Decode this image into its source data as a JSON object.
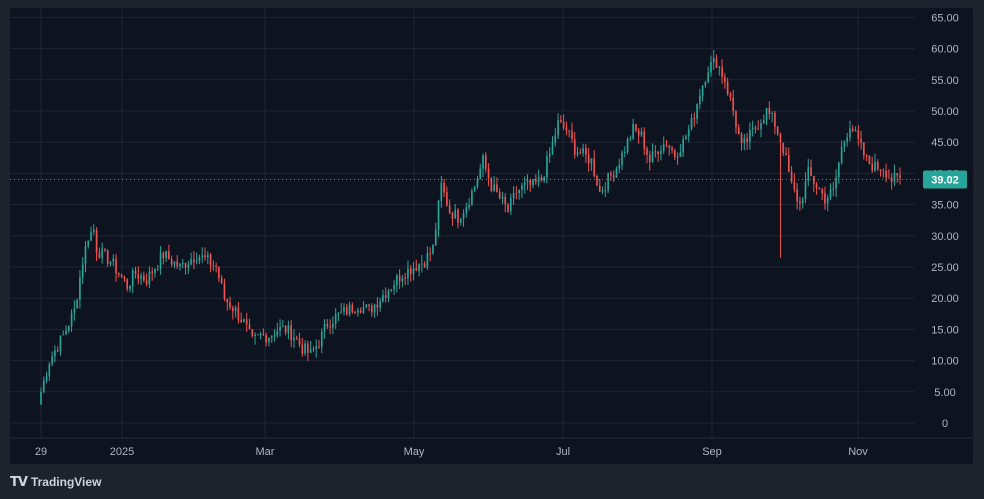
{
  "brand": {
    "logo_mark": "TV",
    "name": "TradingView"
  },
  "colors": {
    "background": "#1e222d",
    "panel": "#0e1320",
    "grid": "#1e2433",
    "up": "#26a69a",
    "down": "#ef5350",
    "text": "#b2b5be",
    "price_line": "#26a69a",
    "price_label_bg": "#26a69a"
  },
  "chart_data": {
    "type": "candlestick",
    "y_ticks": [
      "65.00",
      "60.00",
      "55.00",
      "50.00",
      "45.00",
      "40.00",
      "35.00",
      "30.00",
      "25.00",
      "20.00",
      "15.00",
      "10.00",
      "5.00",
      "0"
    ],
    "ylim": [
      0,
      65
    ],
    "x_ticks": [
      "29",
      "2025",
      "Mar",
      "May",
      "Jul",
      "Sep",
      "Nov"
    ],
    "last_price": 39.02,
    "last_price_label": "39.02",
    "grid": true,
    "price_path_keypoints": [
      [
        0,
        5
      ],
      [
        3,
        10
      ],
      [
        8,
        14
      ],
      [
        12,
        18
      ],
      [
        15,
        26
      ],
      [
        17,
        30
      ],
      [
        19,
        31
      ],
      [
        20,
        28
      ],
      [
        22,
        27
      ],
      [
        25,
        26
      ],
      [
        28,
        24
      ],
      [
        31,
        22
      ],
      [
        34,
        24
      ],
      [
        38,
        23
      ],
      [
        41,
        25
      ],
      [
        44,
        27
      ],
      [
        47,
        26
      ],
      [
        50,
        25
      ],
      [
        53,
        26
      ],
      [
        56,
        27
      ],
      [
        60,
        26
      ],
      [
        63,
        25
      ],
      [
        66,
        20
      ],
      [
        70,
        18
      ],
      [
        73,
        16
      ],
      [
        76,
        13
      ],
      [
        79,
        14
      ],
      [
        82,
        14
      ],
      [
        85,
        15
      ],
      [
        88,
        15
      ],
      [
        91,
        14
      ],
      [
        94,
        12
      ],
      [
        97,
        11
      ],
      [
        100,
        13
      ],
      [
        103,
        16
      ],
      [
        106,
        17
      ],
      [
        110,
        18
      ],
      [
        114,
        19
      ],
      [
        118,
        18
      ],
      [
        122,
        20
      ],
      [
        126,
        22
      ],
      [
        130,
        24
      ],
      [
        134,
        25
      ],
      [
        138,
        26
      ],
      [
        141,
        28
      ],
      [
        144,
        38
      ],
      [
        147,
        34
      ],
      [
        150,
        33
      ],
      [
        153,
        35
      ],
      [
        156,
        38
      ],
      [
        159,
        42
      ],
      [
        162,
        38
      ],
      [
        165,
        36
      ],
      [
        168,
        34
      ],
      [
        171,
        37
      ],
      [
        174,
        38
      ],
      [
        177,
        38
      ],
      [
        180,
        39
      ],
      [
        183,
        43
      ],
      [
        186,
        48
      ],
      [
        189,
        47
      ],
      [
        192,
        44
      ],
      [
        195,
        43
      ],
      [
        198,
        42
      ],
      [
        201,
        37
      ],
      [
        204,
        39
      ],
      [
        207,
        41
      ],
      [
        210,
        44
      ],
      [
        213,
        47
      ],
      [
        216,
        46
      ],
      [
        219,
        42
      ],
      [
        222,
        44
      ],
      [
        225,
        45
      ],
      [
        228,
        43
      ],
      [
        231,
        45
      ],
      [
        234,
        48
      ],
      [
        237,
        53
      ],
      [
        240,
        57
      ],
      [
        243,
        58
      ],
      [
        246,
        55
      ],
      [
        249,
        50
      ],
      [
        252,
        44
      ],
      [
        255,
        46
      ],
      [
        258,
        48
      ],
      [
        261,
        50
      ],
      [
        264,
        48
      ],
      [
        267,
        44
      ],
      [
        270,
        38
      ],
      [
        273,
        35
      ],
      [
        276,
        40
      ],
      [
        279,
        38
      ],
      [
        282,
        36
      ],
      [
        285,
        37
      ],
      [
        288,
        44
      ],
      [
        291,
        48
      ],
      [
        294,
        45
      ],
      [
        297,
        42
      ],
      [
        300,
        41
      ],
      [
        303,
        41
      ],
      [
        306,
        39
      ],
      [
        309,
        39
      ]
    ],
    "wick_events": [
      {
        "index": 266,
        "low": 26.5
      }
    ]
  }
}
